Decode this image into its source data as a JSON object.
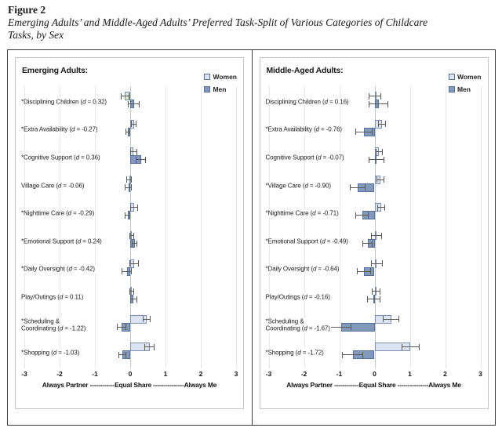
{
  "figure": {
    "label": "Figure 2",
    "title_lines": [
      "Emerging Adults’ and Middle-Aged Adults’ Preferred Task-Split of Various Categories of Childcare",
      "Tasks, by Sex"
    ]
  },
  "colors": {
    "women_fill": "#dbe4f0",
    "women_border": "#7e90b0",
    "men_fill": "#8199bb",
    "men_border": "#57709a",
    "error_bar": "#595959",
    "grid": "#e4e7ec",
    "zero_line": "#c3c8cf"
  },
  "chart_data": [
    {
      "type": "bar",
      "panel_title": "Emerging Adults:",
      "legend": [
        "Women",
        "Men"
      ],
      "xlim": [
        -3,
        3
      ],
      "x_ticks": [
        -3,
        -2,
        -1,
        0,
        1,
        2,
        3
      ],
      "x_caption": "Always Partner ------------Equal Share ---------------Always Me",
      "rows": [
        {
          "category": "*Disciplining Children",
          "d_text": "d = 0.32",
          "women_mean": -0.15,
          "women_err": 0.12,
          "men_mean": 0.1,
          "men_err": 0.17
        },
        {
          "category": "*Extra Availability",
          "d_text": "d = -0.27",
          "women_mean": 0.1,
          "women_err": 0.08,
          "men_mean": -0.07,
          "men_err": 0.07
        },
        {
          "category": "*Cognitive Support",
          "d_text": "d = 0.36",
          "women_mean": 0.09,
          "women_err": 0.1,
          "men_mean": 0.3,
          "men_err": 0.15
        },
        {
          "category": "Village Care",
          "d_text": "d = -0.06",
          "women_mean": -0.03,
          "women_err": 0.08,
          "men_mean": -0.05,
          "men_err": 0.1
        },
        {
          "category": "*Nighttime Care",
          "d_text": "d = -0.29",
          "women_mean": 0.12,
          "women_err": 0.11,
          "men_mean": -0.07,
          "men_err": 0.08
        },
        {
          "category": "*Emotional Support",
          "d_text": "d = 0.24",
          "women_mean": 0.05,
          "women_err": 0.07,
          "men_mean": 0.13,
          "men_err": 0.08
        },
        {
          "category": "*Daily Oversight",
          "d_text": "d = -0.42",
          "women_mean": 0.11,
          "women_err": 0.13,
          "men_mean": -0.1,
          "men_err": 0.14
        },
        {
          "category": "Play/Outings",
          "d_text": "d = 0.11",
          "women_mean": 0.05,
          "women_err": 0.07,
          "men_mean": 0.09,
          "men_err": 0.1
        },
        {
          "category": "*Scheduling &\nCoordinating",
          "d_text": "d = -1.22",
          "women_mean": 0.47,
          "women_err": 0.11,
          "men_mean": -0.25,
          "men_err": 0.13
        },
        {
          "category": "*Shopping",
          "d_text": "d = -1.03",
          "women_mean": 0.55,
          "women_err": 0.14,
          "men_mean": -0.22,
          "men_err": 0.11
        }
      ]
    },
    {
      "type": "bar",
      "panel_title": "Middle-Aged Adults:",
      "legend": [
        "Women",
        "Men"
      ],
      "xlim": [
        -3,
        3
      ],
      "x_ticks": [
        -3,
        -2,
        -1,
        0,
        1,
        2,
        3
      ],
      "x_caption": "Always Partner ------------Equal Share ---------------Always Me",
      "rows": [
        {
          "category": "Disciplining Children",
          "d_text": "d = 0.16",
          "women_mean": 0.02,
          "women_err": 0.18,
          "men_mean": 0.12,
          "men_err": 0.28
        },
        {
          "category": "*Extra Availability",
          "d_text": "d = -0.76",
          "women_mean": 0.21,
          "women_err": 0.11,
          "men_mean": -0.3,
          "men_err": 0.24
        },
        {
          "category": "Cognitive Support",
          "d_text": "d = -0.07",
          "women_mean": 0.13,
          "women_err": 0.1,
          "men_mean": 0.05,
          "men_err": 0.22
        },
        {
          "category": "*Village Care",
          "d_text": "d = -0.90",
          "women_mean": 0.17,
          "women_err": 0.11,
          "men_mean": -0.47,
          "men_err": 0.22
        },
        {
          "category": "*Nighttime Care",
          "d_text": "d = -0.71",
          "women_mean": 0.19,
          "women_err": 0.12,
          "men_mean": -0.35,
          "men_err": 0.19
        },
        {
          "category": "*Emotional Support",
          "d_text": "d = -0.49",
          "women_mean": 0.05,
          "women_err": 0.15,
          "men_mean": -0.2,
          "men_err": 0.14
        },
        {
          "category": "*Daily Oversight",
          "d_text": "d = -0.64",
          "women_mean": 0.06,
          "women_err": 0.17,
          "men_mean": -0.31,
          "men_err": 0.2
        },
        {
          "category": "Play/Outings",
          "d_text": "d = -0.16",
          "women_mean": 0.04,
          "women_err": 0.12,
          "men_mean": -0.03,
          "men_err": 0.19
        },
        {
          "category": "*Scheduling &\nCoordinating",
          "d_text": "d = -1.67",
          "women_mean": 0.47,
          "women_err": 0.23,
          "men_mean": -0.95,
          "men_err": 0.3
        },
        {
          "category": "*Shopping",
          "d_text": "d = -1.72",
          "women_mean": 1.02,
          "women_err": 0.25,
          "men_mean": -0.62,
          "men_err": 0.3
        }
      ]
    }
  ]
}
